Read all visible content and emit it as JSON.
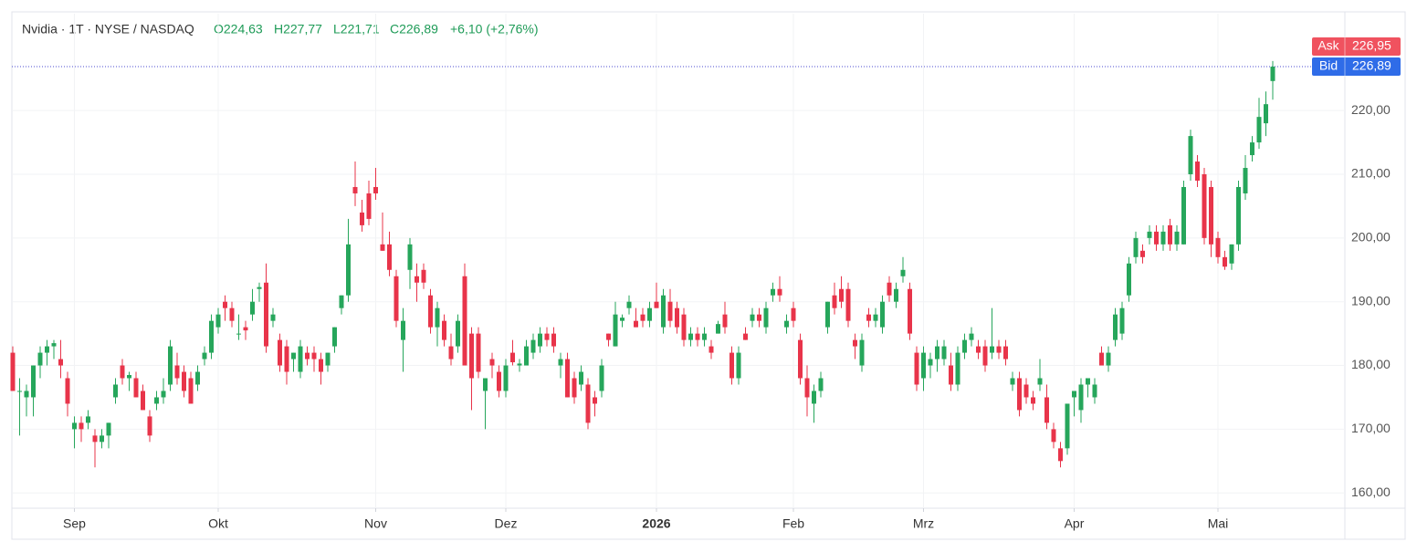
{
  "header": {
    "symbol": "Nvidia · 1T · NYSE / NASDAQ",
    "ohlc": [
      "O224,63",
      "H227,77",
      "L221,71",
      "C226,89"
    ],
    "change": "+6,10 (+2,76%)"
  },
  "quotes": {
    "ask": {
      "label": "Ask",
      "value": 226.95,
      "value_label": "226,95",
      "color": "#f0525f"
    },
    "bid": {
      "label": "Bid",
      "value": 226.89,
      "value_label": "226,89",
      "color": "#2f6ce8"
    }
  },
  "chart_data": {
    "type": "candlestick",
    "up_color": "#26a65b",
    "down_color": "#e8344a",
    "grid": true,
    "ylim": [
      157.6,
      235.2
    ],
    "yticks": [
      {
        "value": 160,
        "label": "160,00"
      },
      {
        "value": 170,
        "label": "170,00"
      },
      {
        "value": 180,
        "label": "180,00"
      },
      {
        "value": 190,
        "label": "190,00"
      },
      {
        "value": 200,
        "label": "200,00"
      },
      {
        "value": 210,
        "label": "210,00"
      },
      {
        "value": 220,
        "label": "220,00"
      }
    ],
    "categories": [
      null,
      null,
      null,
      null,
      null,
      null,
      null,
      null,
      null,
      "Sep",
      null,
      null,
      null,
      null,
      null,
      null,
      null,
      null,
      null,
      null,
      null,
      null,
      null,
      null,
      null,
      null,
      null,
      null,
      null,
      null,
      "Okt",
      null,
      null,
      null,
      null,
      null,
      null,
      null,
      null,
      null,
      null,
      null,
      null,
      null,
      null,
      null,
      null,
      null,
      null,
      null,
      null,
      null,
      null,
      "Nov",
      null,
      null,
      null,
      null,
      null,
      null,
      null,
      null,
      null,
      null,
      null,
      null,
      null,
      null,
      null,
      null,
      null,
      null,
      "Dez",
      null,
      null,
      null,
      null,
      null,
      null,
      null,
      null,
      null,
      null,
      null,
      null,
      null,
      null,
      null,
      null,
      null,
      null,
      null,
      null,
      null,
      "2026",
      null,
      null,
      null,
      null,
      null,
      null,
      null,
      null,
      null,
      null,
      null,
      null,
      null,
      null,
      null,
      null,
      null,
      null,
      null,
      "Feb",
      null,
      null,
      null,
      null,
      null,
      null,
      null,
      null,
      null,
      null,
      null,
      null,
      null,
      null,
      null,
      null,
      null,
      null,
      "Mrz",
      null,
      null,
      null,
      null,
      null,
      null,
      null,
      null,
      null,
      null,
      null,
      null,
      null,
      null,
      null,
      null,
      null,
      null,
      null,
      null,
      null,
      "Apr",
      null,
      null,
      null,
      null,
      null,
      null,
      null,
      null,
      null,
      null,
      null,
      null,
      null,
      null,
      null,
      null,
      null,
      null,
      null,
      null,
      "Mai",
      null,
      null,
      null,
      null,
      null,
      null,
      null,
      null
    ],
    "values": [
      [
        182,
        183,
        176,
        176
      ],
      [
        176,
        178,
        169,
        176
      ],
      [
        175,
        177,
        172,
        176
      ],
      [
        175,
        180,
        172,
        180
      ],
      [
        180,
        183,
        178,
        182
      ],
      [
        182,
        184,
        180,
        183
      ],
      [
        183,
        184,
        181,
        183.5
      ],
      [
        181,
        184,
        178,
        180
      ],
      [
        178,
        179,
        172,
        174
      ],
      [
        170,
        172,
        167,
        171
      ],
      [
        171,
        172,
        168,
        170
      ],
      [
        171,
        173,
        170,
        172
      ],
      [
        169,
        170,
        164,
        168
      ],
      [
        168,
        170,
        167,
        169
      ],
      [
        169,
        171,
        167,
        171
      ],
      [
        175,
        178,
        174,
        177
      ],
      [
        180,
        181,
        177,
        178
      ],
      [
        178,
        179,
        176,
        178.5
      ],
      [
        178,
        179,
        175,
        175
      ],
      [
        176,
        177,
        173,
        173
      ],
      [
        172,
        173,
        168,
        169
      ],
      [
        174,
        176,
        173,
        175
      ],
      [
        175,
        178,
        174,
        176
      ],
      [
        177,
        184,
        176,
        183
      ],
      [
        180,
        182,
        177,
        178
      ],
      [
        179,
        180,
        175,
        176
      ],
      [
        178,
        179,
        174,
        174
      ],
      [
        177,
        180,
        176,
        179
      ],
      [
        181,
        183,
        180,
        182
      ],
      [
        182,
        188,
        181,
        187
      ],
      [
        186,
        189,
        185,
        188
      ],
      [
        190,
        191,
        187,
        189
      ],
      [
        189,
        190,
        186,
        187
      ],
      [
        185,
        188,
        184,
        185
      ],
      [
        186,
        187,
        184,
        185.5
      ],
      [
        188,
        192,
        187,
        190
      ],
      [
        192,
        193,
        190,
        192.3
      ],
      [
        193,
        196,
        182,
        183
      ],
      [
        187,
        189,
        186,
        188
      ],
      [
        184,
        185,
        179,
        180
      ],
      [
        183,
        184,
        177,
        179
      ],
      [
        181,
        182,
        179,
        182
      ],
      [
        179,
        184,
        178,
        183
      ],
      [
        182,
        183,
        180,
        181
      ],
      [
        182,
        183,
        179,
        181
      ],
      [
        181,
        182,
        177,
        179
      ],
      [
        180,
        182,
        179,
        182
      ],
      [
        183,
        186,
        182,
        186
      ],
      [
        189,
        191,
        188,
        191
      ],
      [
        191,
        203,
        190,
        199
      ],
      [
        208,
        212,
        205,
        207
      ],
      [
        204,
        206,
        201,
        202
      ],
      [
        207,
        209,
        202,
        203
      ],
      [
        208,
        211,
        206,
        207
      ],
      [
        199,
        204,
        198,
        198
      ],
      [
        199,
        201,
        194,
        195
      ],
      [
        194,
        195,
        186,
        187
      ],
      [
        184,
        189,
        179,
        187
      ],
      [
        195,
        200,
        192,
        199
      ],
      [
        194,
        196,
        190,
        193
      ],
      [
        195,
        196,
        192,
        193
      ],
      [
        191,
        192,
        185,
        186
      ],
      [
        186,
        190,
        183,
        189
      ],
      [
        187,
        188,
        183,
        184
      ],
      [
        183,
        185,
        180,
        181
      ],
      [
        183,
        188,
        182,
        187
      ],
      [
        194,
        196,
        180,
        180
      ],
      [
        185,
        186,
        173,
        178
      ],
      [
        185,
        186,
        178,
        179
      ],
      [
        176,
        178,
        170,
        178
      ],
      [
        181,
        182,
        178,
        180
      ],
      [
        179,
        180,
        175,
        176
      ],
      [
        176,
        181,
        175,
        180
      ],
      [
        182,
        184,
        180,
        180.5
      ],
      [
        180,
        181,
        179,
        180.3
      ],
      [
        180,
        184,
        180,
        183
      ],
      [
        182,
        185,
        181,
        184
      ],
      [
        183,
        186,
        182,
        185
      ],
      [
        185,
        186,
        183,
        184
      ],
      [
        185,
        186,
        182,
        183
      ],
      [
        180,
        182,
        178,
        181
      ],
      [
        181,
        182,
        175,
        175
      ],
      [
        178,
        179,
        174,
        175
      ],
      [
        177,
        180,
        176,
        179
      ],
      [
        177,
        178,
        170,
        171
      ],
      [
        175,
        176,
        172,
        174
      ],
      [
        176,
        181,
        175,
        180
      ],
      [
        185,
        185,
        183,
        184
      ],
      [
        183,
        190,
        183,
        188
      ],
      [
        187,
        188,
        186,
        187.5
      ],
      [
        189,
        191,
        188,
        190
      ],
      [
        187,
        189,
        186,
        186
      ],
      [
        188,
        189,
        186,
        187
      ],
      [
        187,
        190,
        186,
        189
      ],
      [
        190,
        193,
        189,
        189
      ],
      [
        186,
        192,
        185,
        191
      ],
      [
        190,
        192,
        186,
        187
      ],
      [
        189,
        190,
        185,
        186
      ],
      [
        188,
        189,
        183,
        184
      ],
      [
        184,
        186,
        183,
        185
      ],
      [
        185,
        186,
        183,
        184
      ],
      [
        184,
        186,
        183,
        185
      ],
      [
        183,
        184,
        181,
        182
      ],
      [
        185,
        187,
        185,
        186.5
      ],
      [
        188,
        190,
        185,
        186
      ],
      [
        182,
        183,
        177,
        178
      ],
      [
        178,
        183,
        177,
        182
      ],
      [
        185,
        186,
        184,
        184
      ],
      [
        187,
        189,
        186,
        188
      ],
      [
        188,
        189,
        186,
        187
      ],
      [
        186,
        190,
        185,
        189
      ],
      [
        191,
        193,
        190,
        192
      ],
      [
        192,
        194,
        190,
        191
      ],
      [
        186,
        188,
        185,
        187
      ],
      [
        189,
        190,
        186,
        187
      ],
      [
        184,
        185,
        177,
        178
      ],
      [
        178,
        180,
        172,
        175
      ],
      [
        174,
        177,
        171,
        176
      ],
      [
        176,
        179,
        175,
        178
      ],
      [
        186,
        190,
        185,
        190
      ],
      [
        191,
        193,
        188,
        189
      ],
      [
        192,
        194,
        189,
        190
      ],
      [
        192,
        193,
        186,
        187
      ],
      [
        184,
        185,
        181,
        183
      ],
      [
        180,
        185,
        179,
        184
      ],
      [
        188,
        189,
        186,
        187
      ],
      [
        187,
        189,
        186,
        188
      ],
      [
        186,
        191,
        185,
        190
      ],
      [
        193,
        194,
        190,
        191
      ],
      [
        190,
        193,
        189,
        192
      ],
      [
        194,
        197,
        193,
        195
      ],
      [
        192,
        193,
        184,
        185
      ],
      [
        182,
        183,
        176,
        177
      ],
      [
        178,
        183,
        176,
        182
      ],
      [
        180,
        182,
        178,
        181
      ],
      [
        181,
        184,
        179,
        183
      ],
      [
        181,
        184,
        180,
        183
      ],
      [
        180,
        182,
        176,
        177
      ],
      [
        177,
        183,
        176,
        182
      ],
      [
        182,
        185,
        181,
        184
      ],
      [
        184,
        186,
        183,
        185
      ],
      [
        183,
        184,
        181,
        182
      ],
      [
        183,
        184,
        179,
        180
      ],
      [
        182,
        189,
        181,
        183
      ],
      [
        183,
        184,
        181,
        182
      ],
      [
        183,
        184,
        180,
        181
      ],
      [
        177,
        179,
        176,
        178
      ],
      [
        178,
        179,
        172,
        173
      ],
      [
        177,
        178,
        174,
        175
      ],
      [
        175,
        176,
        173,
        174
      ],
      [
        177,
        181,
        176,
        178
      ],
      [
        175,
        177,
        170,
        171
      ],
      [
        170,
        171,
        167,
        168
      ],
      [
        167,
        168,
        164,
        165
      ],
      [
        167,
        174,
        166,
        174
      ],
      [
        175,
        176,
        172,
        176
      ],
      [
        173,
        178,
        171,
        177
      ],
      [
        177,
        178,
        175,
        178
      ],
      [
        175,
        178,
        174,
        177
      ],
      [
        182,
        183,
        180,
        180
      ],
      [
        180,
        183,
        179,
        182
      ],
      [
        184,
        189,
        183,
        188
      ],
      [
        185,
        190,
        184,
        189
      ],
      [
        191,
        197,
        190,
        196
      ],
      [
        197,
        201,
        196,
        200
      ],
      [
        198,
        199,
        196,
        197
      ],
      [
        200,
        202,
        199,
        201
      ],
      [
        201,
        202,
        198,
        199
      ],
      [
        199,
        202,
        198,
        201
      ],
      [
        202,
        203,
        198,
        199
      ],
      [
        199,
        202,
        198,
        201
      ],
      [
        199,
        209,
        199,
        208
      ],
      [
        210,
        217,
        209,
        216
      ],
      [
        212,
        213,
        208,
        209
      ],
      [
        210,
        211,
        199,
        200
      ],
      [
        208,
        209,
        197,
        199
      ],
      [
        200,
        201,
        196,
        197
      ],
      [
        197,
        198,
        195,
        195.5
      ],
      [
        196,
        199,
        195,
        199
      ],
      [
        199,
        209,
        198,
        208
      ],
      [
        207,
        213,
        206,
        211
      ],
      [
        213,
        216,
        212,
        215
      ],
      [
        215,
        222,
        214,
        219
      ],
      [
        218,
        223,
        216,
        221
      ],
      [
        224.63,
        227.77,
        221.71,
        226.89
      ]
    ]
  }
}
